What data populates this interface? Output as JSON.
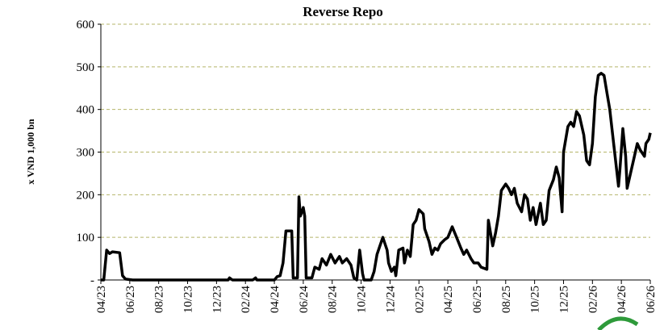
{
  "chart_data": {
    "type": "line",
    "title": "Reverse Repo",
    "y_label": "x VND 1,000 bn",
    "series": [
      {
        "name": "Reverse Repo",
        "color": "#000000",
        "x": [
          0,
          0.2,
          0.4,
          0.6,
          0.8,
          1.3,
          1.5,
          1.7,
          2.2,
          8.8,
          8.9,
          9.1,
          10.5,
          10.7,
          10.8,
          12.0,
          12.2,
          12.4,
          12.6,
          12.8,
          13.2,
          13.3,
          13.6,
          13.7,
          13.8,
          14.0,
          14.1,
          14.2,
          14.6,
          14.8,
          15.1,
          15.3,
          15.6,
          15.9,
          16.2,
          16.5,
          16.7,
          17.0,
          17.3,
          17.5,
          17.7,
          17.9,
          18.1,
          18.2,
          18.7,
          18.9,
          19.1,
          19.3,
          19.5,
          19.8,
          19.9,
          20.1,
          20.3,
          20.4,
          20.6,
          20.9,
          21.0,
          21.2,
          21.4,
          21.6,
          21.8,
          22.0,
          22.3,
          22.4,
          22.7,
          22.9,
          23.1,
          23.3,
          23.5,
          23.8,
          24.0,
          24.3,
          24.6,
          24.9,
          25.1,
          25.3,
          25.6,
          25.8,
          26.1,
          26.3,
          26.7,
          26.8,
          27.1,
          27.3,
          27.5,
          27.7,
          28.0,
          28.2,
          28.4,
          28.6,
          28.8,
          29.1,
          29.3,
          29.5,
          29.7,
          29.9,
          30.1,
          30.4,
          30.6,
          30.8,
          31.0,
          31.3,
          31.5,
          31.7,
          31.9,
          32.0,
          32.3,
          32.5,
          32.7,
          32.9,
          33.1,
          33.4,
          33.6,
          33.8,
          34.0,
          34.2,
          34.4,
          34.6,
          34.8,
          35.0,
          35.2,
          35.4,
          35.6,
          35.8,
          35.9,
          36.1,
          36.3,
          36.4,
          36.7,
          36.9,
          37.1,
          37.3,
          37.6,
          37.7,
          37.9,
          38.0
        ],
        "values": [
          0,
          0,
          70,
          62,
          66,
          64,
          10,
          2,
          0,
          0,
          5,
          0,
          0,
          5,
          0,
          0,
          8,
          10,
          40,
          115,
          115,
          5,
          5,
          195,
          150,
          170,
          150,
          5,
          5,
          30,
          25,
          50,
          35,
          60,
          40,
          55,
          40,
          50,
          35,
          5,
          0,
          70,
          15,
          0,
          0,
          20,
          60,
          80,
          100,
          70,
          40,
          20,
          30,
          10,
          70,
          75,
          40,
          70,
          55,
          130,
          140,
          165,
          155,
          120,
          90,
          60,
          75,
          70,
          85,
          95,
          100,
          125,
          100,
          75,
          60,
          70,
          50,
          40,
          40,
          30,
          25,
          140,
          80,
          110,
          150,
          210,
          225,
          215,
          200,
          215,
          180,
          160,
          200,
          190,
          140,
          170,
          130,
          180,
          130,
          140,
          210,
          235,
          265,
          240,
          160,
          300,
          360,
          370,
          360,
          395,
          385,
          340,
          280,
          270,
          320,
          430,
          480,
          485,
          480,
          440,
          400,
          340,
          280,
          220,
          260,
          355,
          290,
          215,
          260,
          290,
          320,
          305,
          290,
          320,
          330,
          345
        ]
      }
    ],
    "xlim": [
      0,
      38
    ],
    "xticks": [
      {
        "value": 0,
        "label": "04/23"
      },
      {
        "value": 2,
        "label": "06/23"
      },
      {
        "value": 4,
        "label": "08/23"
      },
      {
        "value": 6,
        "label": "10/23"
      },
      {
        "value": 8,
        "label": "12/23"
      },
      {
        "value": 10,
        "label": "02/24"
      },
      {
        "value": 12,
        "label": "04/24"
      },
      {
        "value": 14,
        "label": "06/24"
      },
      {
        "value": 16,
        "label": "08/24"
      },
      {
        "value": 18,
        "label": "10/24"
      },
      {
        "value": 20,
        "label": "12/24"
      },
      {
        "value": 22,
        "label": "02/25"
      },
      {
        "value": 24,
        "label": "04/25"
      },
      {
        "value": 26,
        "label": "06/25"
      },
      {
        "value": 28,
        "label": "08/25"
      },
      {
        "value": 30,
        "label": "10/25"
      },
      {
        "value": 32,
        "label": "12/25"
      },
      {
        "value": 34,
        "label": "02/26"
      },
      {
        "value": 36,
        "label": "04/26"
      },
      {
        "value": 38,
        "label": "06/26"
      }
    ],
    "ylim": [
      0,
      600
    ],
    "yticks": [
      {
        "value": 0,
        "label": "-"
      },
      100,
      200,
      300,
      400,
      500,
      600
    ],
    "grid": true,
    "grid_color": "#b5b56a"
  }
}
